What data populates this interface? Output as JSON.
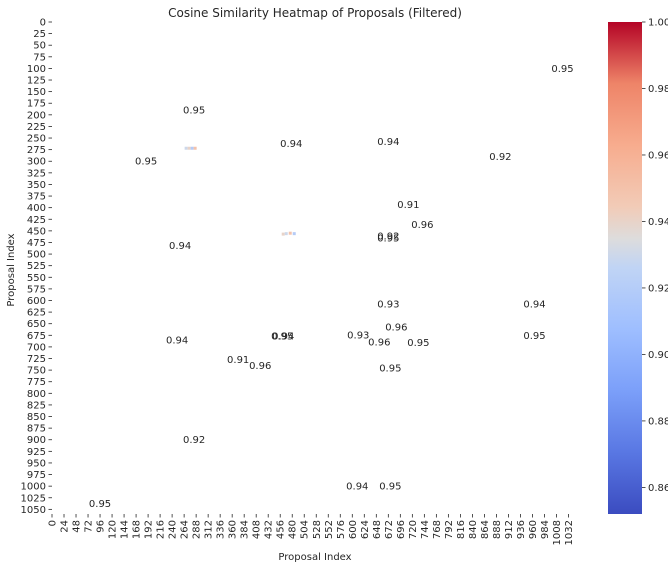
{
  "chart_data": {
    "type": "heatmap",
    "title": "Cosine Similarity Heatmap of Proposals (Filtered)",
    "xlabel": "Proposal Index",
    "ylabel": "Proposal Index",
    "x_tick_labels": [
      "0",
      "24",
      "48",
      "72",
      "96",
      "120",
      "144",
      "168",
      "192",
      "216",
      "240",
      "264",
      "288",
      "312",
      "336",
      "360",
      "384",
      "408",
      "432",
      "456",
      "480",
      "504",
      "528",
      "552",
      "576",
      "600",
      "624",
      "648",
      "672",
      "696",
      "720",
      "744",
      "768",
      "792",
      "816",
      "840",
      "864",
      "888",
      "912",
      "936",
      "960",
      "984",
      "1008",
      "1032"
    ],
    "y_tick_labels": [
      "0",
      "25",
      "50",
      "75",
      "100",
      "125",
      "150",
      "175",
      "200",
      "225",
      "250",
      "275",
      "300",
      "325",
      "350",
      "375",
      "400",
      "425",
      "450",
      "475",
      "500",
      "525",
      "550",
      "575",
      "600",
      "625",
      "650",
      "675",
      "700",
      "725",
      "750",
      "775",
      "800",
      "825",
      "850",
      "875",
      "900",
      "925",
      "950",
      "975",
      "1000",
      "1025",
      "1050"
    ],
    "xlim": [
      0,
      1045
    ],
    "ylim": [
      0,
      1060
    ],
    "colorbar": {
      "colormap": "coolwarm",
      "vmin": 0.852,
      "vmax": 1.0,
      "tick_labels": [
        "0.86",
        "0.88",
        "0.90",
        "0.92",
        "0.94",
        "0.96",
        "0.98",
        "1.00"
      ]
    },
    "grid": false,
    "annotations": [
      {
        "x": 1020,
        "y": 100,
        "label": "0.95"
      },
      {
        "x": 284,
        "y": 190,
        "label": "0.95"
      },
      {
        "x": 478,
        "y": 262,
        "label": "0.94"
      },
      {
        "x": 672,
        "y": 257,
        "label": "0.94"
      },
      {
        "x": 896,
        "y": 290,
        "label": "0.92"
      },
      {
        "x": 188,
        "y": 300,
        "label": "0.95"
      },
      {
        "x": 712,
        "y": 393,
        "label": "0.91"
      },
      {
        "x": 740,
        "y": 436,
        "label": "0.96"
      },
      {
        "x": 672,
        "y": 461,
        "label": "0.92"
      },
      {
        "x": 672,
        "y": 465,
        "label": "0.95"
      },
      {
        "x": 256,
        "y": 481,
        "label": "0.94"
      },
      {
        "x": 672,
        "y": 608,
        "label": "0.93"
      },
      {
        "x": 688,
        "y": 657,
        "label": "0.96"
      },
      {
        "x": 964,
        "y": 608,
        "label": "0.94"
      },
      {
        "x": 964,
        "y": 675,
        "label": "0.95"
      },
      {
        "x": 612,
        "y": 674,
        "label": "0.93"
      },
      {
        "x": 460,
        "y": 677,
        "label": "0.95"
      },
      {
        "x": 462,
        "y": 677,
        "label": "0.94"
      },
      {
        "x": 250,
        "y": 685,
        "label": "0.94"
      },
      {
        "x": 654,
        "y": 689,
        "label": "0.96"
      },
      {
        "x": 732,
        "y": 691,
        "label": "0.95"
      },
      {
        "x": 372,
        "y": 727,
        "label": "0.91"
      },
      {
        "x": 416,
        "y": 740,
        "label": "0.96"
      },
      {
        "x": 676,
        "y": 745,
        "label": "0.95"
      },
      {
        "x": 284,
        "y": 900,
        "label": "0.92"
      },
      {
        "x": 610,
        "y": 1000,
        "label": "0.94"
      },
      {
        "x": 676,
        "y": 1000,
        "label": "0.95"
      },
      {
        "x": 96,
        "y": 1037,
        "label": "0.95"
      }
    ],
    "cells": [
      {
        "x": 268,
        "y": 272,
        "value": 0.93
      },
      {
        "x": 274,
        "y": 272,
        "value": 0.94
      },
      {
        "x": 280,
        "y": 272,
        "value": 0.92
      },
      {
        "x": 286,
        "y": 272,
        "value": 0.95
      },
      {
        "x": 462,
        "y": 457,
        "value": 0.94
      },
      {
        "x": 468,
        "y": 456,
        "value": 0.93
      },
      {
        "x": 476,
        "y": 455,
        "value": 0.95
      },
      {
        "x": 484,
        "y": 456,
        "value": 0.92
      }
    ]
  }
}
